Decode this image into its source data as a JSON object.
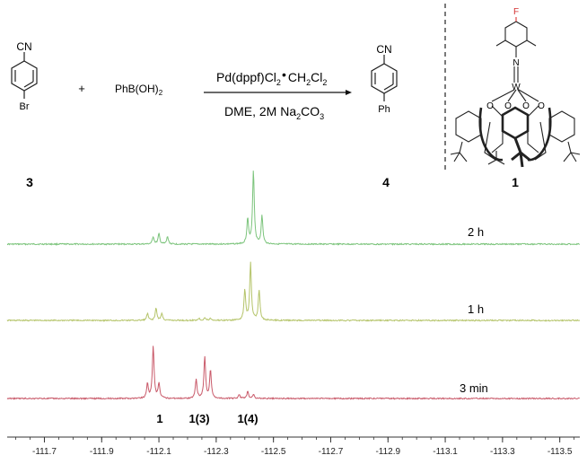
{
  "scheme": {
    "reactant_3": {
      "substituent_top": "CN",
      "substituent_bottom": "Br",
      "label": "3"
    },
    "plus": "+",
    "reagent": {
      "base": "PhB(OH)",
      "sub": "2"
    },
    "conditions_top": {
      "a": "Pd(dppf)Cl",
      "a_sub": "2",
      "dot": "•",
      "b": "CH",
      "b_sub1": "2",
      "c": "Cl",
      "c_sub2": "2"
    },
    "conditions_bottom": {
      "a": "DME, 2M Na",
      "a_sub1": "2",
      "b": "CO",
      "b_sub2": "3"
    },
    "product_4": {
      "substituent_top": "CN",
      "substituent_bottom": "Ph",
      "label": "4"
    },
    "catalyst_1": {
      "atom_F": "F",
      "atom_N": "N",
      "atom_W": "W",
      "atom_O": "O",
      "label": "1"
    }
  },
  "spectra": [
    {
      "label": "2 h",
      "color": "#7cc47c"
    },
    {
      "label": "1 h",
      "color": "#b5c46a"
    },
    {
      "label": "3 min",
      "color": "#c95a6a"
    }
  ],
  "peak_labels": [
    "1",
    "1(3)",
    "1(4)"
  ],
  "chart_data": {
    "type": "line",
    "title": "",
    "xlabel": "",
    "ylabel": "",
    "x_reversed": true,
    "xlim": [
      -111.57,
      -113.57
    ],
    "xticks": [
      -111.7,
      -111.9,
      -112.1,
      -112.3,
      -112.5,
      -112.7,
      -112.9,
      -113.1,
      -113.3,
      -113.5
    ],
    "xtick_labels": [
      "-111.7",
      "-111.9",
      "-112.1",
      "-112.3",
      "-112.5",
      "-112.7",
      "-112.9",
      "-113.1",
      "-113.3",
      "-113.5"
    ],
    "series": [
      {
        "label": "2 h",
        "peaks": [
          {
            "ppm": -112.08,
            "height": 0.1
          },
          {
            "ppm": -112.1,
            "height": 0.14
          },
          {
            "ppm": -112.13,
            "height": 0.1
          },
          {
            "ppm": -112.41,
            "height": 0.34
          },
          {
            "ppm": -112.43,
            "height": 1.0
          },
          {
            "ppm": -112.46,
            "height": 0.38
          }
        ]
      },
      {
        "label": "1 h",
        "peaks": [
          {
            "ppm": -112.06,
            "height": 0.1
          },
          {
            "ppm": -112.09,
            "height": 0.18
          },
          {
            "ppm": -112.11,
            "height": 0.1
          },
          {
            "ppm": -112.24,
            "height": 0.03
          },
          {
            "ppm": -112.26,
            "height": 0.04
          },
          {
            "ppm": -112.28,
            "height": 0.03
          },
          {
            "ppm": -112.4,
            "height": 0.45
          },
          {
            "ppm": -112.42,
            "height": 0.85
          },
          {
            "ppm": -112.45,
            "height": 0.45
          }
        ]
      },
      {
        "label": "3 min",
        "peaks": [
          {
            "ppm": -112.06,
            "height": 0.22
          },
          {
            "ppm": -112.08,
            "height": 0.78
          },
          {
            "ppm": -112.1,
            "height": 0.22
          },
          {
            "ppm": -112.23,
            "height": 0.28
          },
          {
            "ppm": -112.26,
            "height": 0.62
          },
          {
            "ppm": -112.28,
            "height": 0.42
          },
          {
            "ppm": -112.38,
            "height": 0.06
          },
          {
            "ppm": -112.41,
            "height": 0.1
          },
          {
            "ppm": -112.43,
            "height": 0.06
          }
        ]
      }
    ]
  }
}
